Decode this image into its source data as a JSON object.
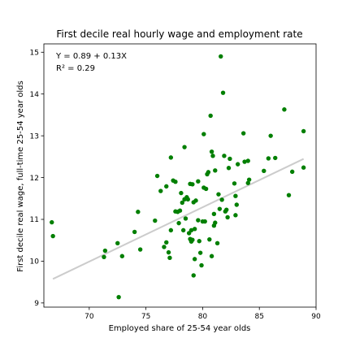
{
  "chart_data": {
    "type": "scatter",
    "title": "First decile real hourly wage and employment rate",
    "xlabel": "Employed share of 25-54 year olds",
    "ylabel": "First decile real wage, full-time 25-54 year olds",
    "xlim": [
      66.0,
      90.0
    ],
    "ylim": [
      8.9,
      15.2
    ],
    "xticks": [
      70,
      75,
      80,
      85,
      90
    ],
    "yticks": [
      9,
      10,
      11,
      12,
      13,
      14,
      15
    ],
    "grid": false,
    "legend": "none",
    "point_color": "#007f00",
    "fit_line_color": "#cccccc",
    "fit_line": {
      "intercept": 0.89,
      "slope": 0.13,
      "x_range": [
        66.8,
        88.9
      ]
    },
    "annotation_equation": "Y = 0.89 + 0.13X",
    "annotation_r2": "R² = 0.29",
    "points": [
      [
        66.7,
        10.93
      ],
      [
        66.8,
        10.6
      ],
      [
        71.3,
        10.1
      ],
      [
        71.4,
        10.25
      ],
      [
        72.5,
        10.43
      ],
      [
        72.6,
        9.14
      ],
      [
        72.9,
        10.12
      ],
      [
        74.0,
        10.7
      ],
      [
        74.3,
        11.18
      ],
      [
        74.5,
        10.28
      ],
      [
        75.8,
        10.97
      ],
      [
        76.0,
        12.04
      ],
      [
        76.3,
        11.68
      ],
      [
        76.6,
        10.34
      ],
      [
        76.8,
        11.79
      ],
      [
        76.8,
        10.45
      ],
      [
        77.0,
        10.21
      ],
      [
        77.1,
        10.08
      ],
      [
        77.2,
        12.48
      ],
      [
        77.2,
        10.74
      ],
      [
        77.4,
        11.93
      ],
      [
        77.6,
        11.9
      ],
      [
        77.6,
        11.19
      ],
      [
        77.8,
        11.18
      ],
      [
        77.9,
        10.91
      ],
      [
        78.0,
        11.21
      ],
      [
        78.1,
        11.63
      ],
      [
        78.2,
        11.4
      ],
      [
        78.3,
        10.74
      ],
      [
        78.4,
        12.73
      ],
      [
        78.4,
        11.48
      ],
      [
        78.5,
        11.02
      ],
      [
        78.6,
        11.53
      ],
      [
        78.7,
        11.48
      ],
      [
        78.8,
        10.67
      ],
      [
        78.9,
        11.85
      ],
      [
        78.9,
        10.53
      ],
      [
        79.0,
        10.47
      ],
      [
        79.0,
        10.74
      ],
      [
        79.1,
        11.84
      ],
      [
        79.1,
        10.51
      ],
      [
        79.2,
        11.41
      ],
      [
        79.2,
        9.66
      ],
      [
        79.3,
        10.77
      ],
      [
        79.3,
        10.05
      ],
      [
        79.4,
        11.45
      ],
      [
        79.6,
        11.91
      ],
      [
        79.6,
        10.98
      ],
      [
        79.7,
        10.48
      ],
      [
        79.8,
        10.2
      ],
      [
        79.9,
        9.9
      ],
      [
        80.0,
        10.95
      ],
      [
        80.1,
        11.76
      ],
      [
        80.1,
        13.04
      ],
      [
        80.2,
        10.95
      ],
      [
        80.3,
        11.73
      ],
      [
        80.4,
        12.08
      ],
      [
        80.5,
        12.13
      ],
      [
        80.6,
        10.52
      ],
      [
        80.7,
        13.48
      ],
      [
        80.8,
        10.12
      ],
      [
        80.8,
        12.62
      ],
      [
        80.9,
        12.52
      ],
      [
        81.0,
        10.85
      ],
      [
        81.0,
        11.13
      ],
      [
        81.1,
        12.17
      ],
      [
        81.1,
        10.92
      ],
      [
        81.3,
        10.43
      ],
      [
        81.4,
        11.6
      ],
      [
        81.5,
        11.25
      ],
      [
        81.6,
        14.9
      ],
      [
        81.7,
        11.47
      ],
      [
        81.8,
        14.03
      ],
      [
        81.9,
        12.52
      ],
      [
        82.0,
        11.19
      ],
      [
        82.1,
        11.23
      ],
      [
        82.2,
        11.05
      ],
      [
        82.3,
        12.23
      ],
      [
        82.4,
        12.45
      ],
      [
        82.8,
        11.86
      ],
      [
        82.9,
        11.1
      ],
      [
        82.9,
        11.56
      ],
      [
        83.0,
        11.35
      ],
      [
        83.1,
        12.32
      ],
      [
        83.6,
        13.06
      ],
      [
        83.7,
        12.38
      ],
      [
        84.0,
        12.4
      ],
      [
        84.0,
        11.87
      ],
      [
        84.1,
        11.95
      ],
      [
        85.4,
        12.16
      ],
      [
        85.8,
        12.46
      ],
      [
        86.0,
        13.0
      ],
      [
        86.4,
        12.47
      ],
      [
        87.2,
        13.63
      ],
      [
        87.6,
        11.58
      ],
      [
        87.9,
        12.14
      ],
      [
        88.9,
        13.11
      ],
      [
        88.9,
        12.24
      ]
    ]
  }
}
